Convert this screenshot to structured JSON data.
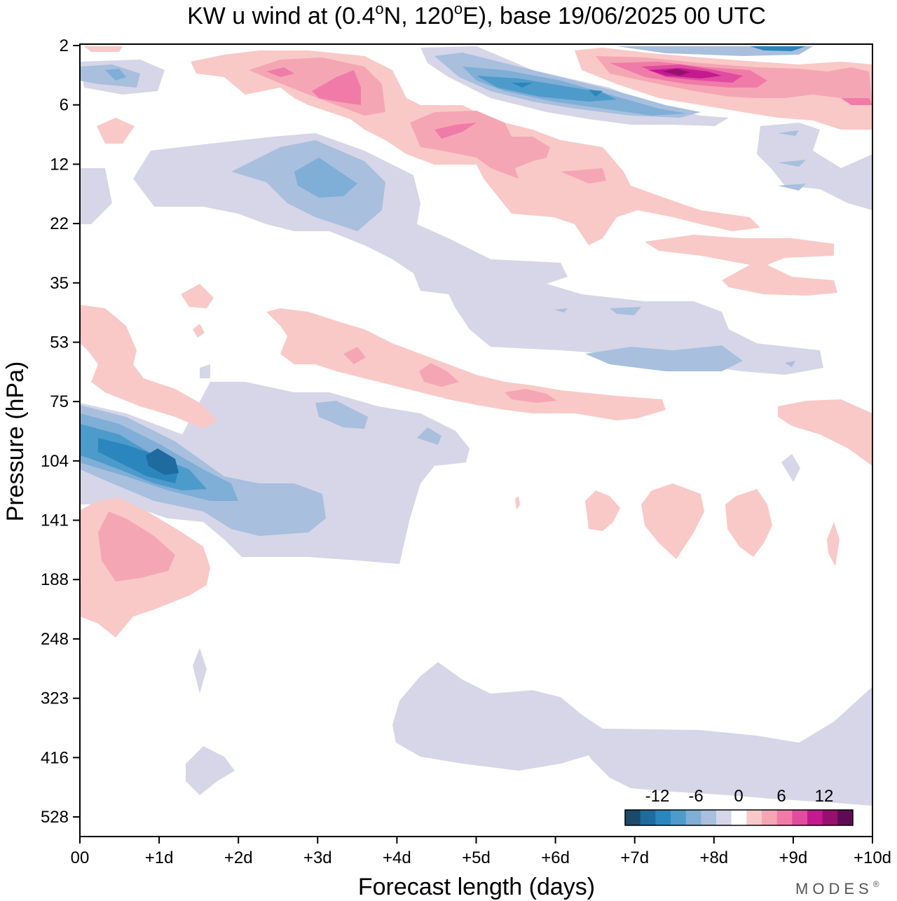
{
  "chart_data": {
    "type": "heatmap",
    "title_parts": [
      "KW u wind at (0.4",
      "o",
      "N, 120",
      "o",
      "E),  base 19/06/2025  00 UTC"
    ],
    "xlabel": "Forecast length (days)",
    "ylabel": "Pressure (hPa)",
    "x_ticks": [
      "00",
      "+1d",
      "+2d",
      "+3d",
      "+4d",
      "+5d",
      "+6d",
      "+7d",
      "+8d",
      "+9d",
      "+10d"
    ],
    "y_ticks": [
      "2",
      "6",
      "12",
      "22",
      "35",
      "53",
      "75",
      "104",
      "141",
      "188",
      "248",
      "323",
      "416",
      "528"
    ],
    "xlim": [
      0,
      10
    ],
    "colorbar": {
      "labels": [
        "-12",
        "-6",
        "0",
        "6",
        "12"
      ],
      "levels": [
        -16,
        -14,
        -12,
        -10,
        -8,
        -6,
        -4,
        -2,
        2,
        4,
        6,
        8,
        10,
        12,
        14,
        16
      ],
      "colors": [
        "#1b4a6b",
        "#1f6a9e",
        "#2b86bd",
        "#4d9bcb",
        "#7faed6",
        "#a8bfde",
        "#d6d6e8",
        "#ffffff",
        "#f9c9c7",
        "#f5a6b4",
        "#f07ba8",
        "#e04c9f",
        "#c31a8f",
        "#96106e",
        "#5e0b56"
      ]
    },
    "features": [
      {
        "x": [
          0.6,
          1.1
        ],
        "p": [
          11,
          17
        ],
        "value": -3
      },
      {
        "x": [
          2.2,
          3.8
        ],
        "p": [
          9,
          22
        ],
        "value": -6
      },
      {
        "x": [
          3.0,
          3.5
        ],
        "p": [
          12,
          16
        ],
        "value": -9
      },
      {
        "x": [
          5.0,
          7.5
        ],
        "p": [
          3,
          7
        ],
        "value": -6
      },
      {
        "x": [
          5.5,
          6.5
        ],
        "p": [
          4,
          5
        ],
        "value": -10
      },
      {
        "x": [
          0,
          0.8
        ],
        "p": [
          4,
          5
        ],
        "value": -4
      },
      {
        "x": [
          2.5,
          4.0
        ],
        "p": [
          3,
          6
        ],
        "value": 6
      },
      {
        "x": [
          4.5,
          6.5
        ],
        "p": [
          8,
          13
        ],
        "value": 5
      },
      {
        "x": [
          6.5,
          9.5
        ],
        "p": [
          3,
          6
        ],
        "value": 10
      },
      {
        "x": [
          7.0,
          8.0
        ],
        "p": [
          3.5,
          4.5
        ],
        "value": 15
      },
      {
        "x": [
          0,
          2.0
        ],
        "p": [
          90,
          125
        ],
        "value": -14
      },
      {
        "x": [
          0,
          4.5
        ],
        "p": [
          70,
          190
        ],
        "value": -4
      },
      {
        "x": [
          0,
          1.6
        ],
        "p": [
          140,
          230
        ],
        "value": 5
      },
      {
        "x": [
          3.0,
          7.0
        ],
        "p": [
          55,
          80
        ],
        "value": 4
      },
      {
        "x": [
          6.5,
          8.5
        ],
        "p": [
          55,
          65
        ],
        "value": -6
      },
      {
        "x": [
          4.0,
          10.0
        ],
        "p": [
          300,
          528
        ],
        "value": -2
      }
    ]
  },
  "branding": {
    "text": "MODES",
    "mark": "®"
  }
}
